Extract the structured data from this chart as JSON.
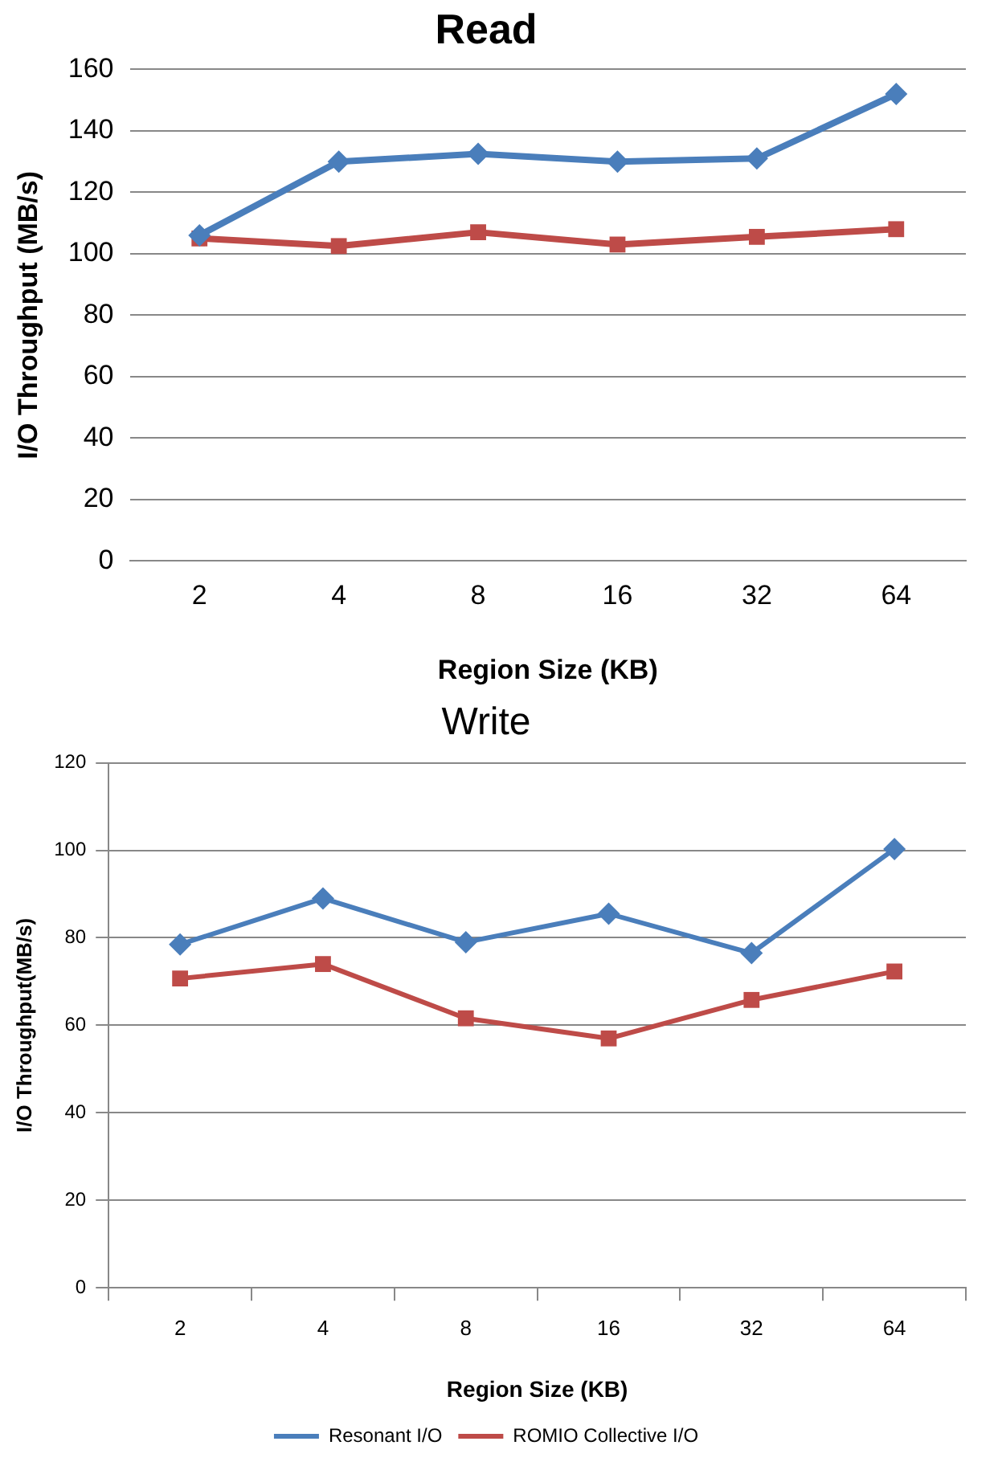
{
  "chart_data": [
    {
      "type": "line",
      "title": "Read",
      "xlabel": "Region Size (KB)",
      "ylabel": "I/O Throughput (MB/s)",
      "categories": [
        "2",
        "4",
        "8",
        "16",
        "32",
        "64"
      ],
      "ylim": [
        0,
        160
      ],
      "yticks": [
        0,
        20,
        40,
        60,
        80,
        100,
        120,
        140,
        160
      ],
      "grid": "y",
      "legend": false,
      "series": [
        {
          "color": "#4a7ebb",
          "marker": "diamond",
          "values": [
            106,
            130,
            132.5,
            130,
            131,
            152
          ]
        },
        {
          "color": "#be4b48",
          "marker": "square",
          "values": [
            105,
            102.5,
            107,
            103,
            105.5,
            108
          ]
        }
      ]
    },
    {
      "type": "line",
      "title": "Write",
      "xlabel": "Region Size (KB)",
      "ylabel": "I/O Throughput(MB/s)",
      "categories": [
        "2",
        "4",
        "8",
        "16",
        "32",
        "64"
      ],
      "ylim": [
        0,
        120
      ],
      "yticks": [
        0,
        20,
        40,
        60,
        80,
        100,
        120
      ],
      "grid": "y",
      "legend": "bottom",
      "series": [
        {
          "name": "Resonant I/O",
          "color": "#4a7ebb",
          "marker": "diamond",
          "values": [
            78.5,
            89,
            79,
            85.5,
            76.5,
            100.3
          ]
        },
        {
          "name": "ROMIO Collective I/O",
          "color": "#be4b48",
          "marker": "square",
          "values": [
            70.7,
            74,
            61.6,
            57,
            65.8,
            72.3
          ]
        }
      ]
    }
  ]
}
